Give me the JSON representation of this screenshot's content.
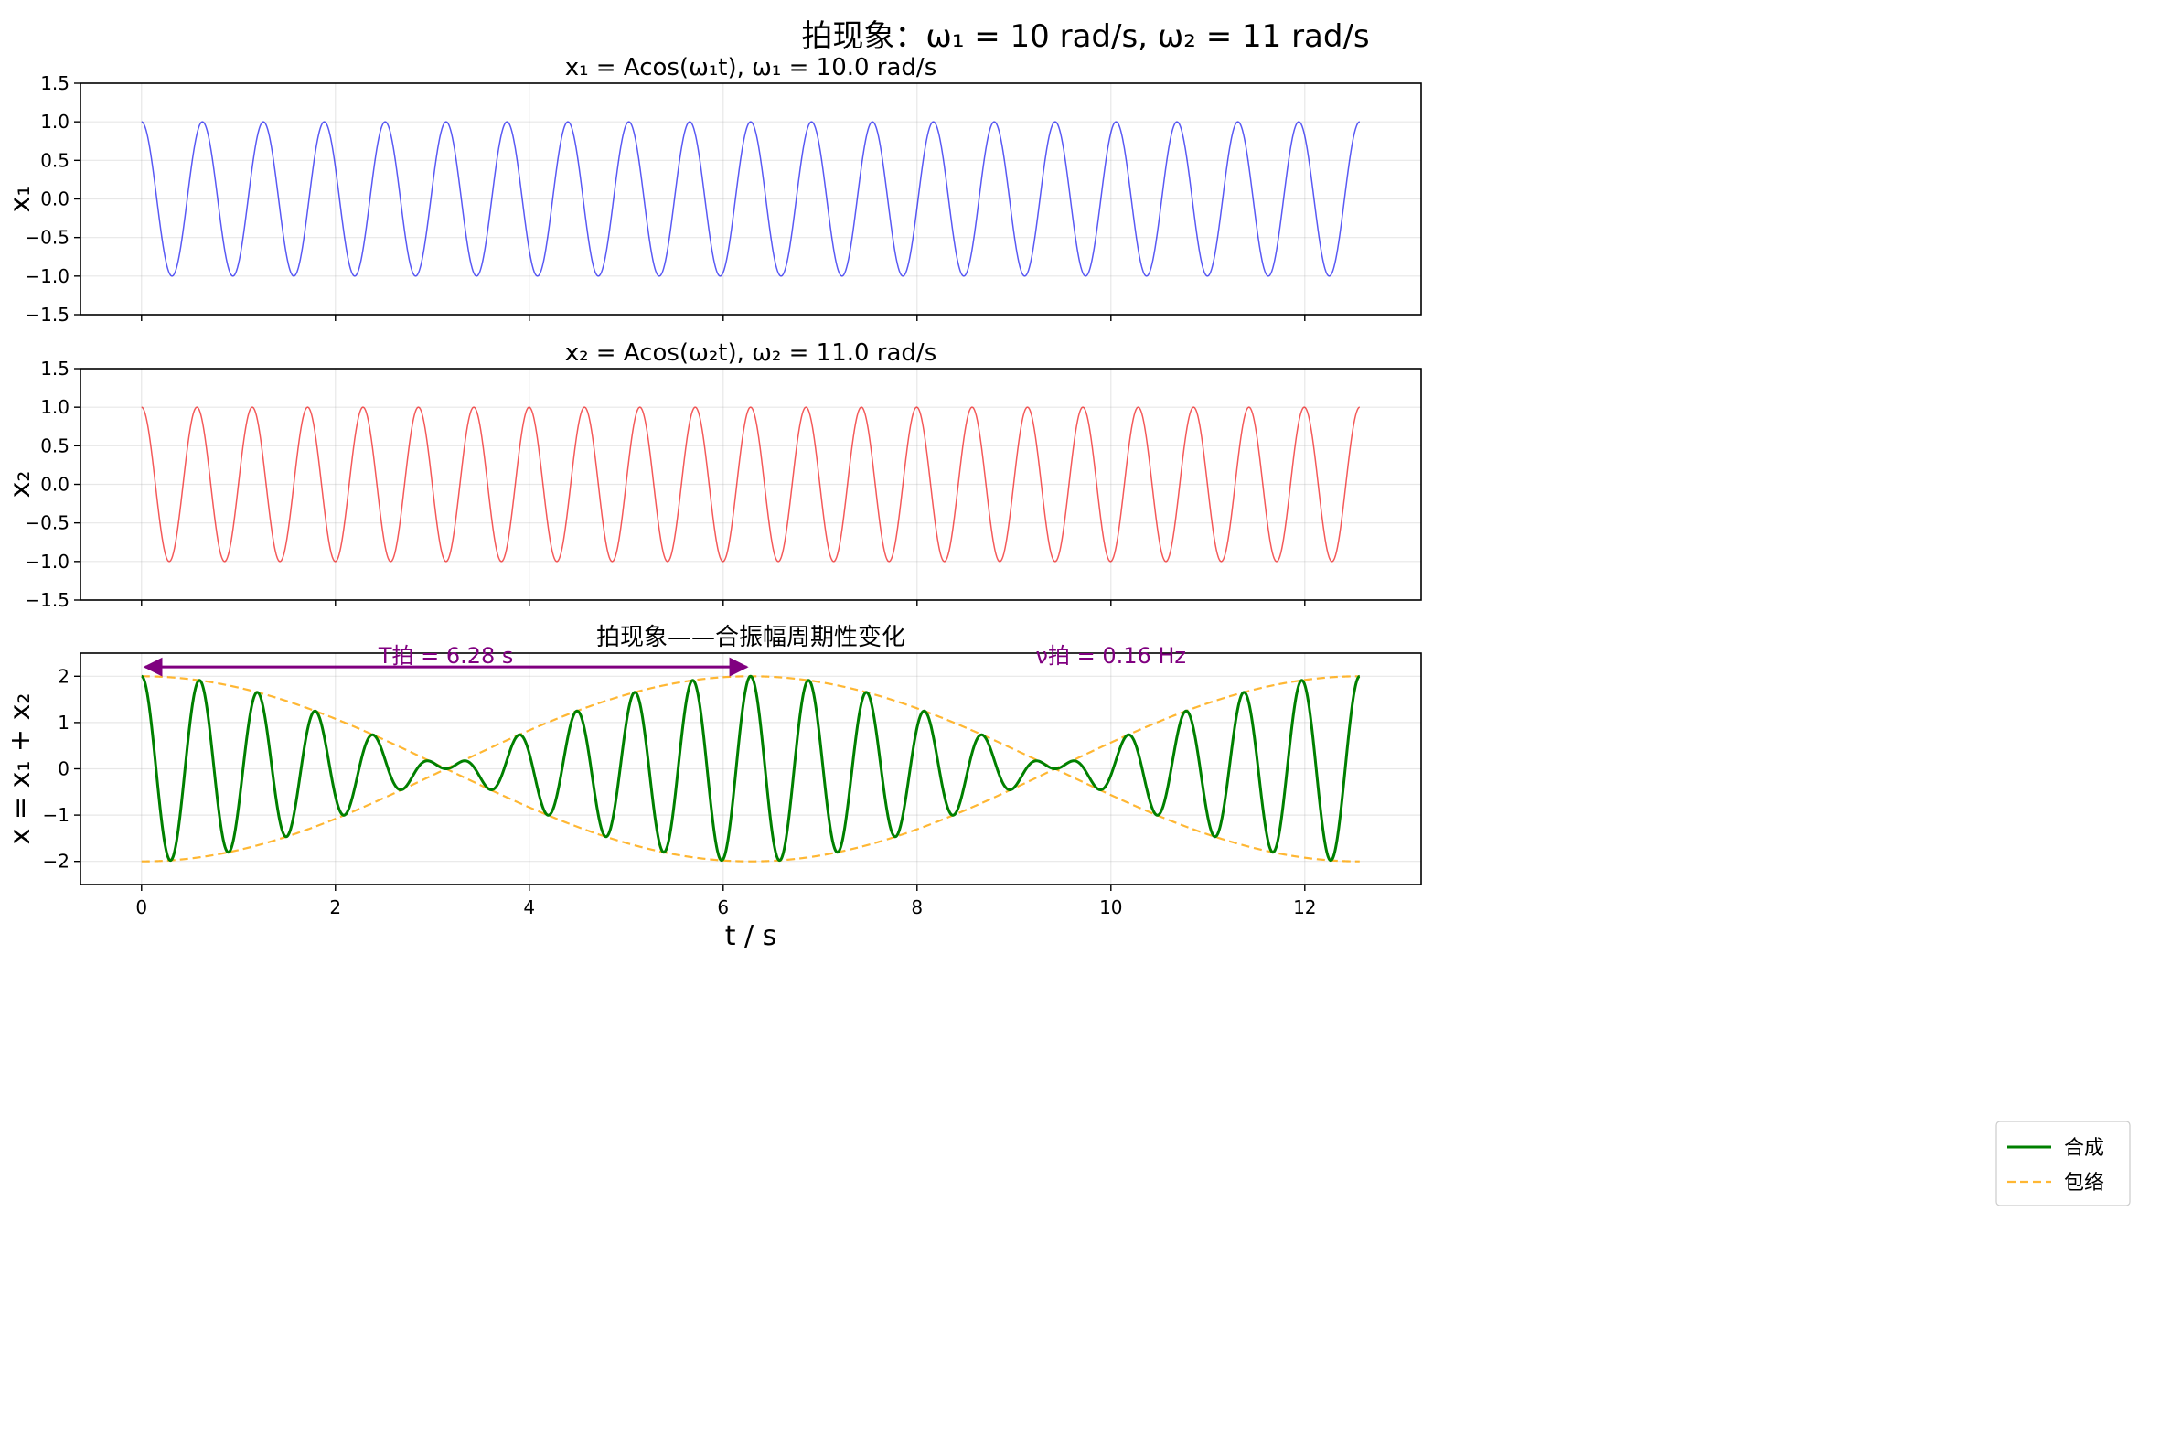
{
  "figure": {
    "suptitle": "拍现象：ω₁ = 10 rad/s,  ω₂ = 11 rad/s"
  },
  "chart_data": [
    {
      "type": "line",
      "title": "x₁ = Acos(ω₁t),  ω₁ = 10.0 rad/s",
      "ylabel": "x₁",
      "xlabel": "",
      "xlim": [
        -0.63,
        13.2
      ],
      "ylim": [
        -1.5,
        1.5
      ],
      "xticks": [
        0,
        2,
        4,
        6,
        8,
        10,
        12
      ],
      "show_xtick_labels": false,
      "yticks": [
        -1.5,
        -1.0,
        -0.5,
        0.0,
        0.5,
        1.0,
        1.5
      ],
      "ytick_labels": [
        "−1.5",
        "−1.0",
        "−0.5",
        "0.0",
        "0.5",
        "1.0",
        "1.5"
      ],
      "grid": true,
      "series": [
        {
          "function": "A*cos(w1*t)",
          "A": 1,
          "w1": 10,
          "t_range": [
            0,
            12.566
          ],
          "color": "#0000ee",
          "opacity": 0.65,
          "linewidth": 1.5
        }
      ]
    },
    {
      "type": "line",
      "title": "x₂ = Acos(ω₂t),  ω₂ = 11.0 rad/s",
      "ylabel": "x₂",
      "xlabel": "",
      "xlim": [
        -0.63,
        13.2
      ],
      "ylim": [
        -1.5,
        1.5
      ],
      "xticks": [
        0,
        2,
        4,
        6,
        8,
        10,
        12
      ],
      "show_xtick_labels": false,
      "yticks": [
        -1.5,
        -1.0,
        -0.5,
        0.0,
        0.5,
        1.0,
        1.5
      ],
      "ytick_labels": [
        "−1.5",
        "−1.0",
        "−0.5",
        "0.0",
        "0.5",
        "1.0",
        "1.5"
      ],
      "grid": true,
      "series": [
        {
          "function": "A*cos(w2*t)",
          "A": 1,
          "w2": 11,
          "t_range": [
            0,
            12.566
          ],
          "color": "#ee0000",
          "opacity": 0.65,
          "linewidth": 1.5
        }
      ]
    },
    {
      "type": "line",
      "title": "拍现象——合振幅周期性变化",
      "ylabel": "x = x₁ + x₂",
      "xlabel": "t / s",
      "xlim": [
        -0.63,
        13.2
      ],
      "ylim": [
        -2.5,
        2.5
      ],
      "xticks": [
        0,
        2,
        4,
        6,
        8,
        10,
        12
      ],
      "xtick_labels": [
        "0",
        "2",
        "4",
        "6",
        "8",
        "10",
        "12"
      ],
      "show_xtick_labels": true,
      "yticks": [
        -2,
        -1,
        0,
        1,
        2
      ],
      "ytick_labels": [
        "−2",
        "−1",
        "0",
        "1",
        "2"
      ],
      "grid": true,
      "series": [
        {
          "name": "合成",
          "function": "cos(w1*t)+cos(w2*t)",
          "w1": 10,
          "w2": 11,
          "t_range": [
            0,
            12.566
          ],
          "color": "#008000",
          "linewidth": 3,
          "style": "solid"
        },
        {
          "name": "包络",
          "function": "±2*cos((w2-w1)*t/2)",
          "w1": 10,
          "w2": 11,
          "t_range": [
            0,
            12.566
          ],
          "color": "#ffa500",
          "opacity": 0.8,
          "linewidth": 2.2,
          "style": "dashed"
        }
      ],
      "annotations": {
        "period_arrow": {
          "x_from": 0,
          "x_to": 6.28,
          "y": 2.2,
          "color": "#800080"
        },
        "period_label": "T拍 = 6.28 s",
        "frequency_label": "ν拍 = 0.16 Hz"
      },
      "legend": {
        "position": "center-right"
      }
    }
  ]
}
